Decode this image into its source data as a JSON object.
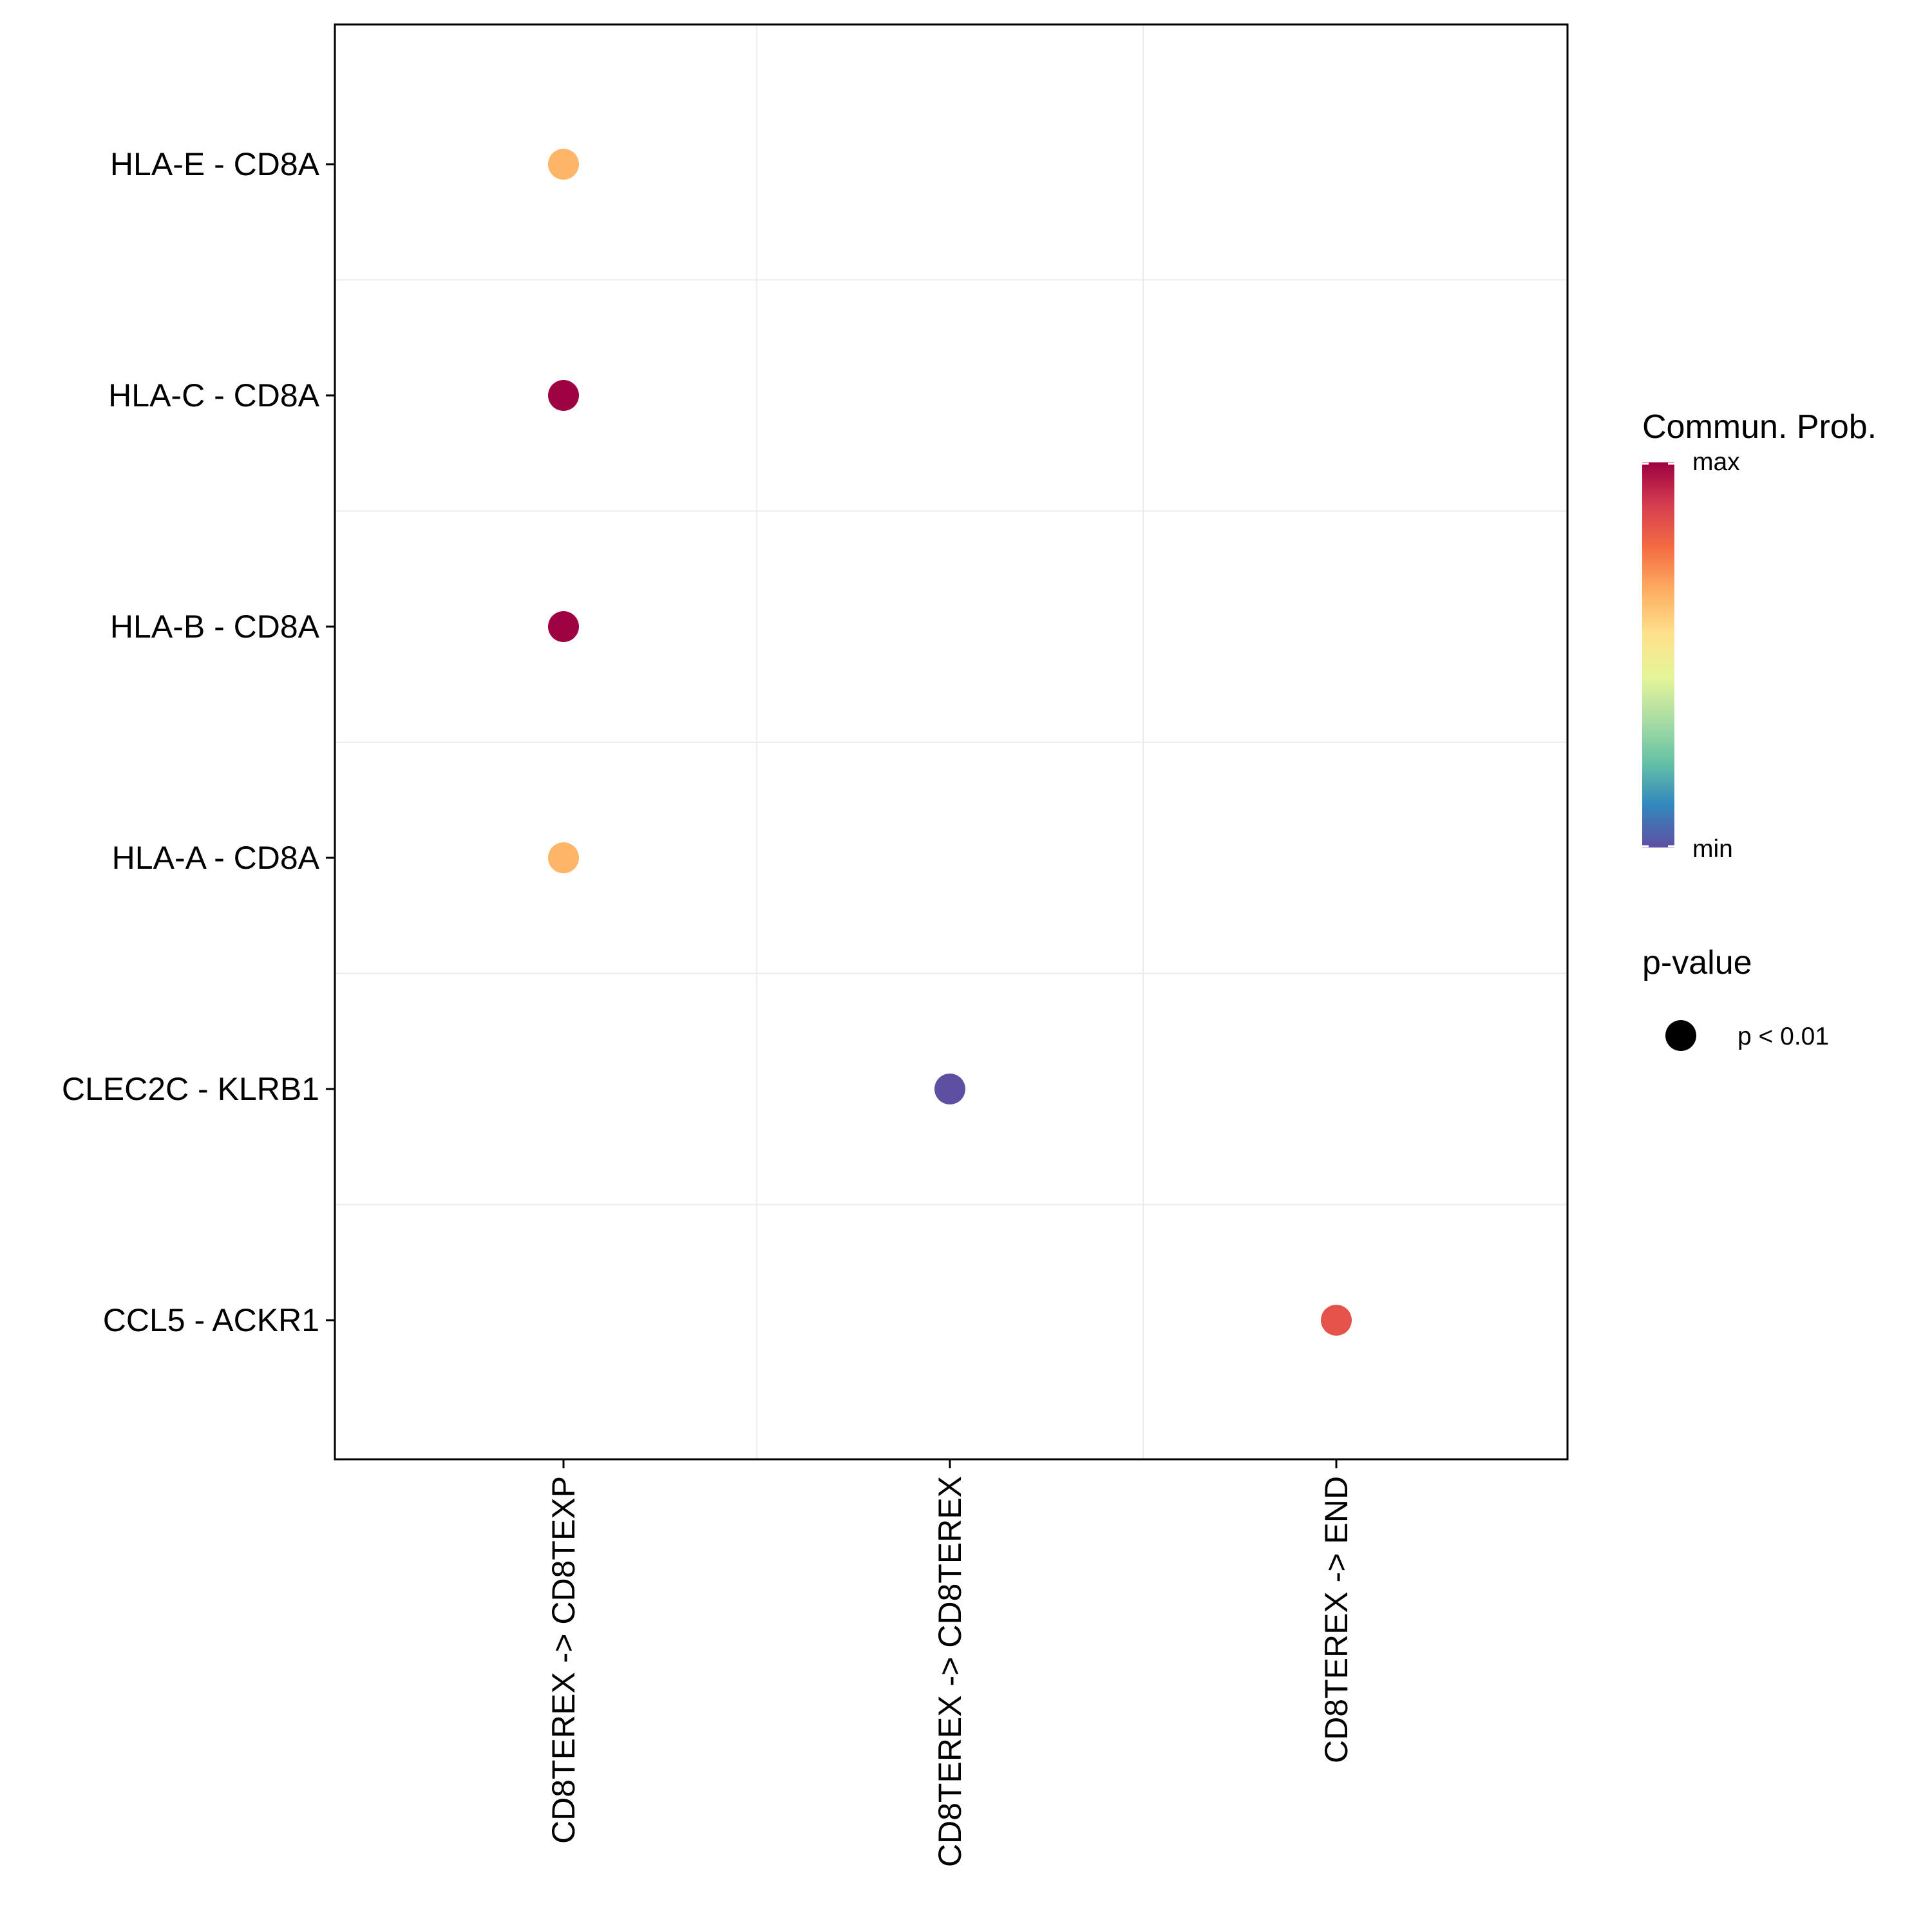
{
  "chart_data": {
    "type": "scatter",
    "title": "",
    "xlabel": "",
    "ylabel": "",
    "grid": true,
    "x_categories": [
      "CD8TEREX -> CD8TEXP",
      "CD8TEREX -> CD8TEREX",
      "CD8TEREX -> END"
    ],
    "y_categories": [
      "HLA-E - CD8A",
      "HLA-C - CD8A",
      "HLA-B - CD8A",
      "HLA-A - CD8A",
      "CLEC2C - KLRB1",
      "CCL5 - ACKR1"
    ],
    "points": [
      {
        "x": "CD8TEREX -> CD8TEXP",
        "y": "HLA-E - CD8A",
        "prob": 0.68,
        "color": "#FDB567",
        "pvalue": "p < 0.01"
      },
      {
        "x": "CD8TEREX -> CD8TEXP",
        "y": "HLA-C - CD8A",
        "prob": 1.0,
        "color": "#9E0142",
        "pvalue": "p < 0.01"
      },
      {
        "x": "CD8TEREX -> CD8TEXP",
        "y": "HLA-B - CD8A",
        "prob": 1.0,
        "color": "#9E0142",
        "pvalue": "p < 0.01"
      },
      {
        "x": "CD8TEREX -> CD8TEXP",
        "y": "HLA-A - CD8A",
        "prob": 0.68,
        "color": "#FDB567",
        "pvalue": "p < 0.01"
      },
      {
        "x": "CD8TEREX -> CD8TEREX",
        "y": "CLEC2C - KLRB1",
        "prob": 0.0,
        "color": "#5E4FA2",
        "pvalue": "p < 0.01"
      },
      {
        "x": "CD8TEREX -> END",
        "y": "CCL5 - ACKR1",
        "prob": 0.82,
        "color": "#E4524A",
        "pvalue": "p < 0.01"
      }
    ],
    "legend": {
      "color_title": "Commun. Prob.",
      "color_max_label": "max",
      "color_min_label": "min",
      "color_scale": [
        "#5E4FA2",
        "#3288BD",
        "#66C2A5",
        "#ABDDA4",
        "#E6F598",
        "#FEE08B",
        "#FDAE61",
        "#F46D43",
        "#D53E4F",
        "#9E0142"
      ],
      "size_title": "p-value",
      "size_label": "p < 0.01",
      "position": "right"
    }
  }
}
